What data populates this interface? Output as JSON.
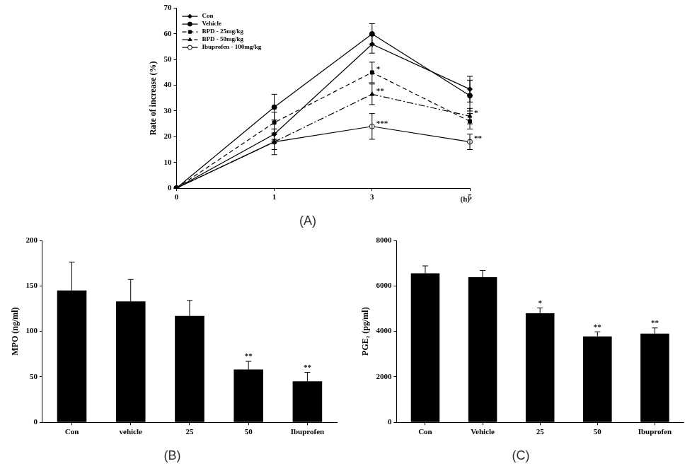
{
  "chart_data": [
    {
      "type": "line",
      "title": "(A)",
      "categories": [
        "0",
        "1",
        "3",
        "5"
      ],
      "x_label": "(h)",
      "y_label": "Rate of increase (%)",
      "ylim": [
        0,
        70
      ],
      "yticks": [
        0,
        10,
        20,
        30,
        40,
        50,
        60,
        70
      ],
      "grid": false,
      "legend": "upper left",
      "series": [
        {
          "name": "Con",
          "color": "#000000",
          "marker": "diamond",
          "line_style": "solid",
          "values": [
            0,
            21,
            56,
            38.5
          ],
          "errors": [
            0,
            2,
            3.5,
            5
          ],
          "significance": [
            null,
            null,
            null,
            null
          ]
        },
        {
          "name": "Vehicle",
          "color": "#000000",
          "marker": "circle",
          "line_style": "solid",
          "values": [
            0,
            31.5,
            60,
            36
          ],
          "errors": [
            0,
            5,
            4,
            6
          ],
          "significance": [
            null,
            null,
            null,
            null
          ]
        },
        {
          "name": "BPD - 25mg/kg",
          "color": "#000000",
          "marker": "square",
          "line_style": "dashed",
          "values": [
            0,
            25.5,
            45,
            26
          ],
          "errors": [
            0,
            4,
            4,
            3
          ],
          "significance": [
            null,
            null,
            "*",
            null
          ]
        },
        {
          "name": "BPD - 50mg/kg",
          "color": "#000000",
          "marker": "triangle",
          "line_style": "dashdot",
          "values": [
            0,
            18,
            36.5,
            28
          ],
          "errors": [
            0,
            3,
            4,
            3
          ],
          "significance": [
            null,
            null,
            "**",
            "*"
          ]
        },
        {
          "name": "Ibuprofen - 100mg/kg",
          "color": "#000000",
          "marker": "open_circle",
          "line_style": "solid",
          "values": [
            0,
            18,
            24,
            18
          ],
          "errors": [
            0,
            5,
            5,
            3
          ],
          "significance": [
            null,
            null,
            "***",
            "**"
          ]
        }
      ]
    },
    {
      "type": "bar",
      "title": "(B)",
      "categories": [
        "Con",
        "vehicle",
        "25",
        "50",
        "Ibuprofen"
      ],
      "y_label": "MPO (ng/ml)",
      "values": [
        145,
        133,
        117,
        58,
        45
      ],
      "errors": [
        31,
        24,
        17,
        9,
        10
      ],
      "significance": [
        null,
        null,
        null,
        "**",
        "**"
      ],
      "color": "#000000",
      "ylim": [
        0,
        200
      ],
      "yticks": [
        0,
        50,
        100,
        150,
        200
      ],
      "grid": false
    },
    {
      "type": "bar",
      "title": "(C)",
      "categories": [
        "Con",
        "Vehicle",
        "25",
        "50",
        "Ibuprofen"
      ],
      "y_label": "PGE₂ (pg/ml)",
      "values": [
        6550,
        6380,
        4800,
        3780,
        3900
      ],
      "errors": [
        330,
        300,
        230,
        200,
        250
      ],
      "significance": [
        null,
        null,
        "*",
        "**",
        "**"
      ],
      "color": "#000000",
      "ylim": [
        0,
        8000
      ],
      "yticks": [
        0,
        2000,
        4000,
        6000,
        8000
      ],
      "grid": false
    }
  ]
}
